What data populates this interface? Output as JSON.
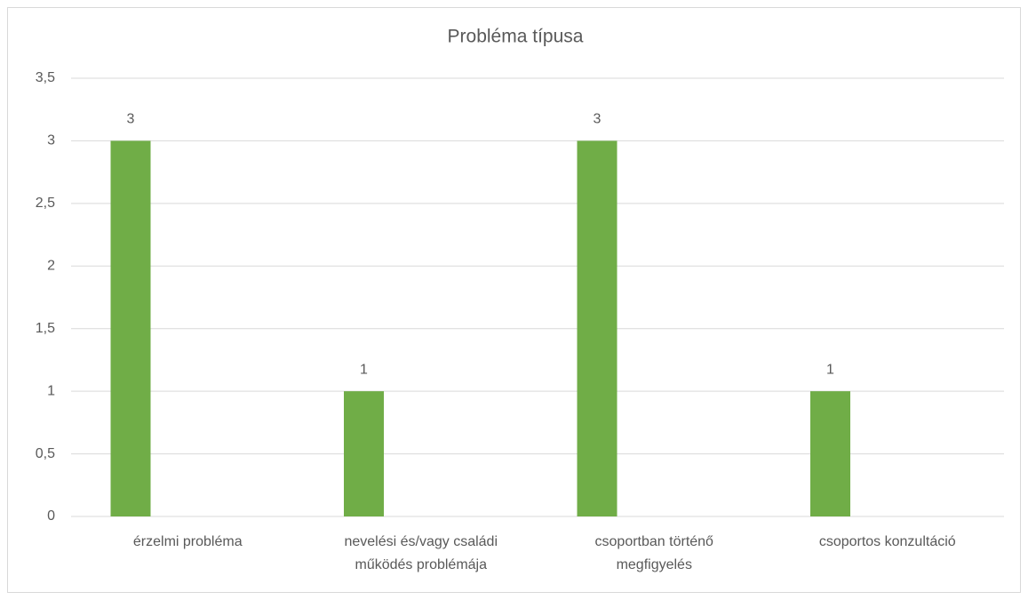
{
  "chart_data": {
    "type": "bar",
    "title": "Probléma típusa",
    "categories": [
      "érzelmi probléma",
      "nevelési és/vagy családi működés problémája",
      "csoportban történő megfigyelés",
      "csoportos konzultáció"
    ],
    "values": [
      3,
      1,
      3,
      1
    ],
    "color": "#70ad47",
    "ylim": [
      0,
      3.5
    ],
    "yticks": [
      0,
      {
        "value": 0.5,
        "label": "0,5"
      },
      1,
      {
        "value": 1.5,
        "label": "1,5"
      },
      2,
      {
        "value": 2.5,
        "label": "2,5"
      },
      3,
      {
        "value": 3.5,
        "label": "3,5"
      }
    ],
    "grid": true
  }
}
